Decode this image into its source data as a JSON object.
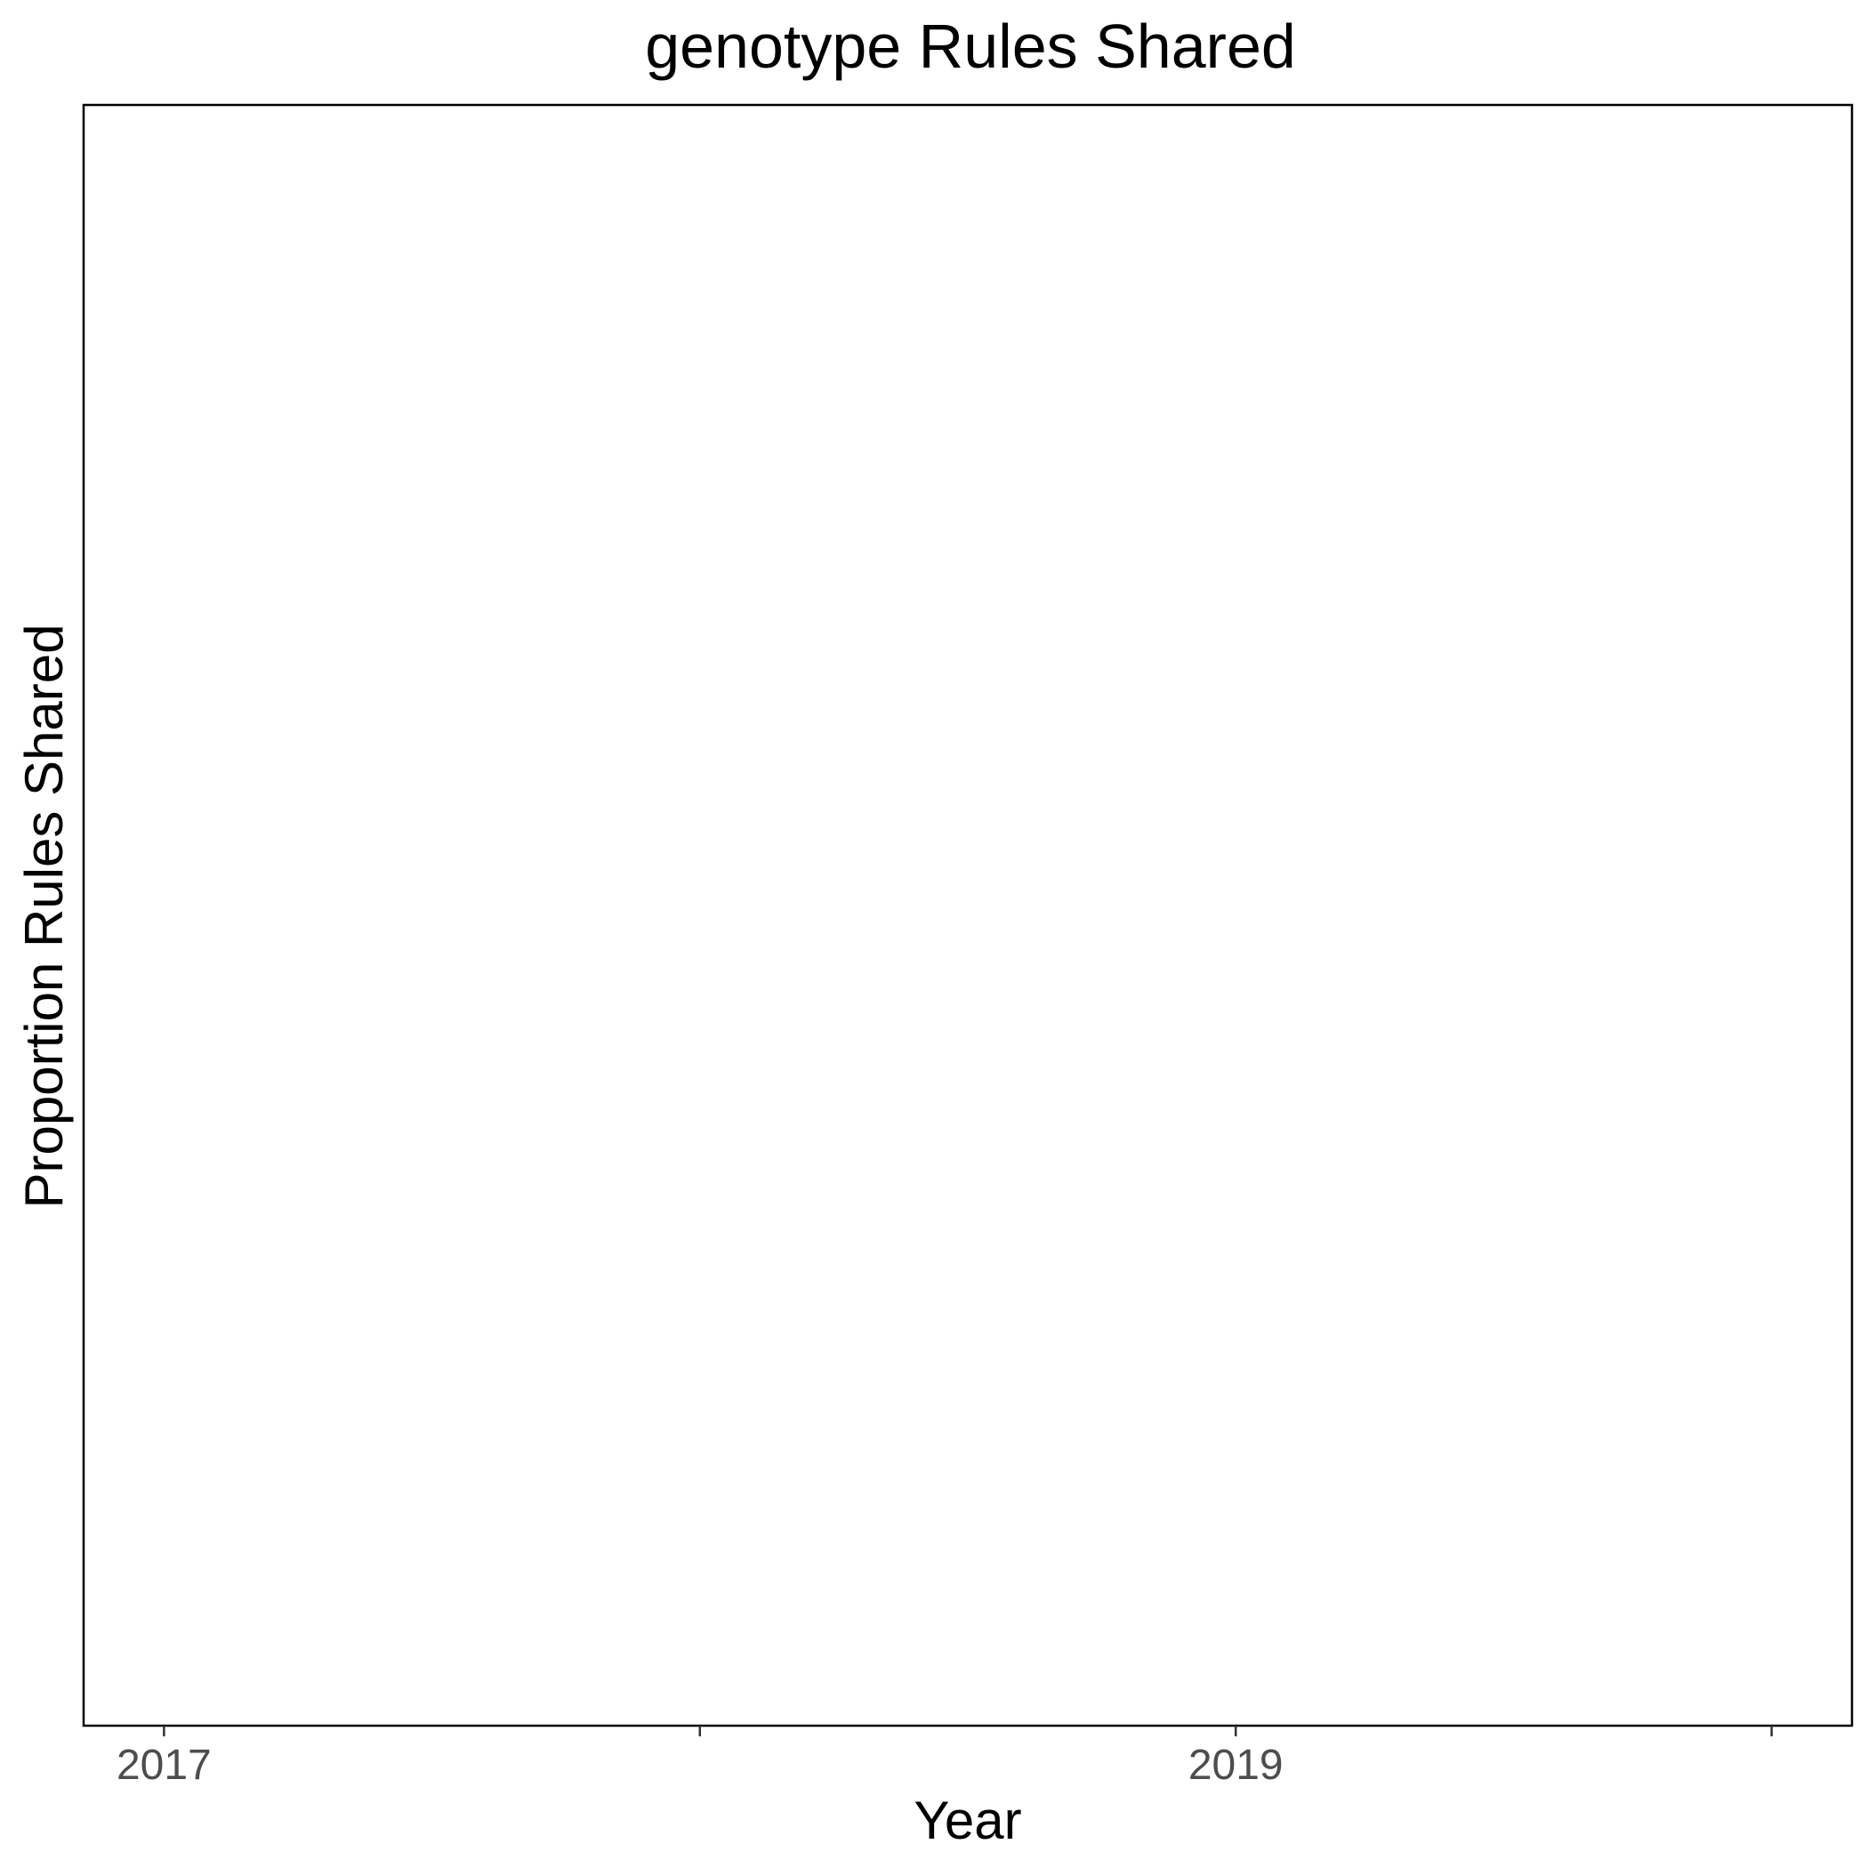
{
  "chart_data": {
    "type": "line",
    "title": "genotype Rules Shared",
    "xlabel": "Year",
    "ylabel": "Proportion Rules Shared",
    "xlim": [
      2016.85,
      2020.15
    ],
    "x_ticks": [
      2017,
      2018,
      2019,
      2020
    ],
    "x_tick_labels": [
      "2017",
      "",
      "2019",
      ""
    ],
    "y_ticks": [],
    "series": [],
    "grid": false,
    "legend": "none"
  }
}
